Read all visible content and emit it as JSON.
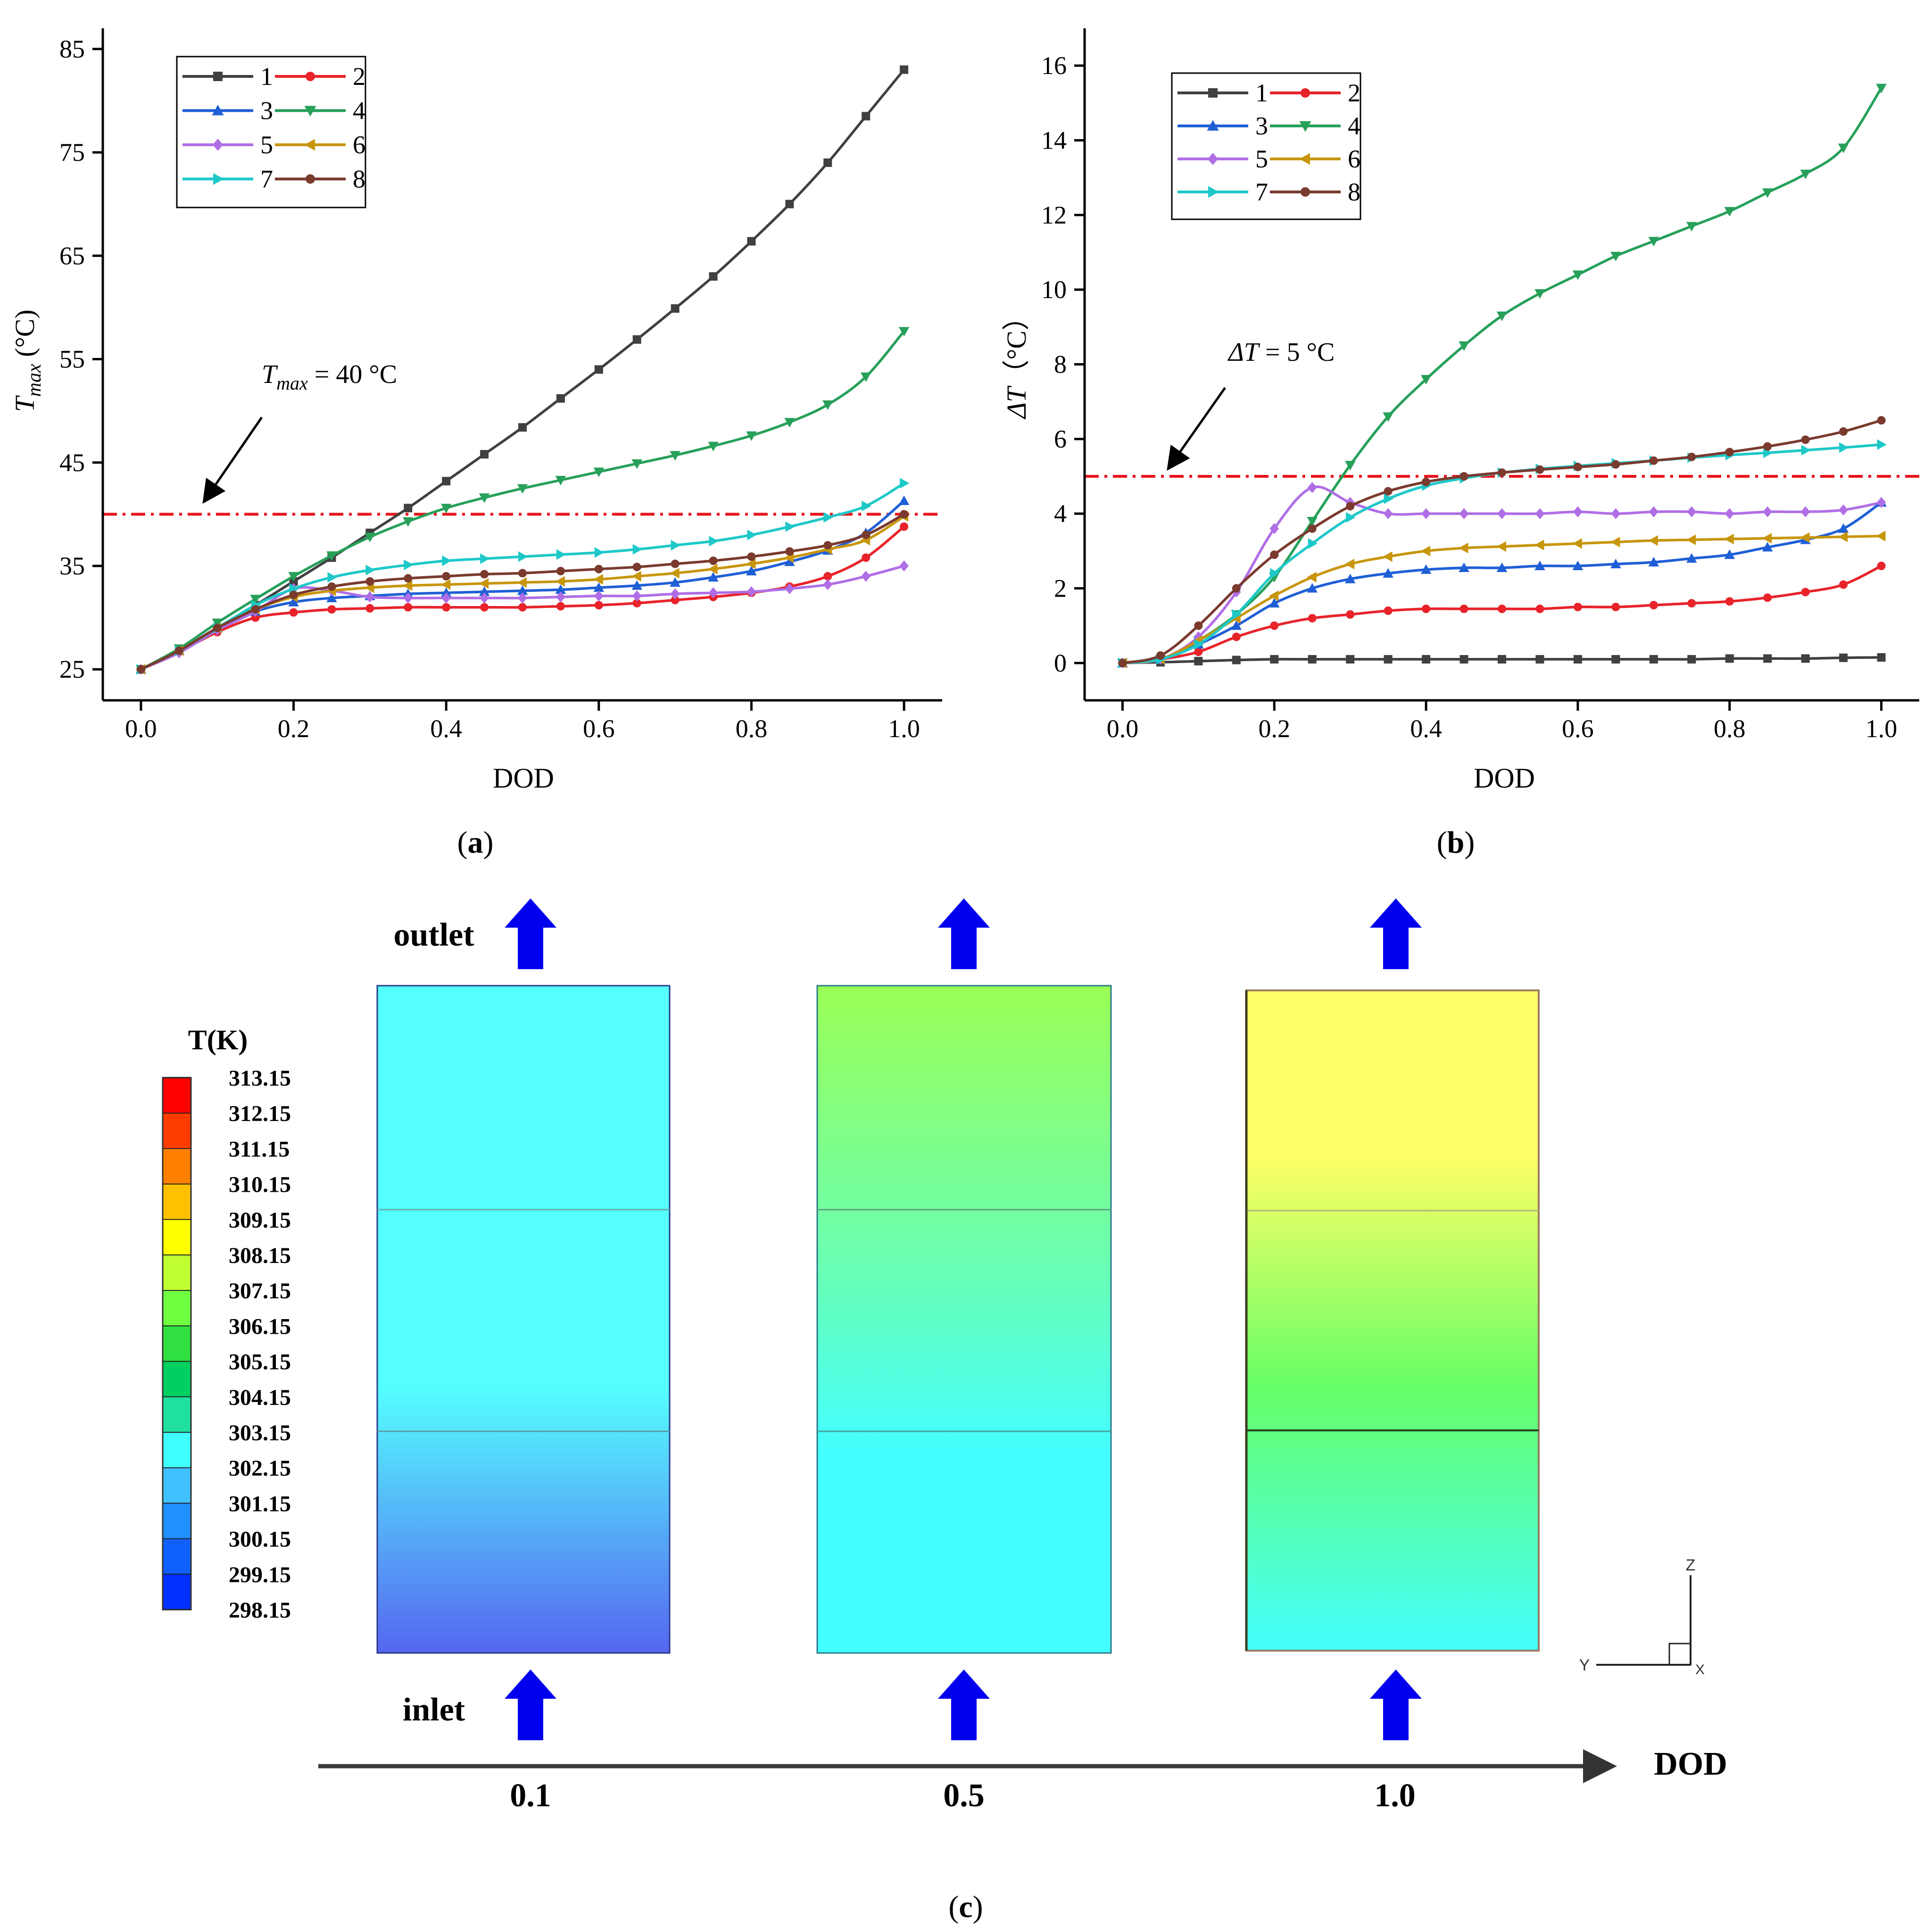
{
  "panel_a": {
    "label": "a",
    "ylabel_main": "T",
    "ylabel_sub": "max",
    "ylabel_unit": " (°C)",
    "xlabel": "DOD",
    "annotation_main": "T",
    "annotation_sub": "max",
    "annotation_rest": " = 40 °C"
  },
  "panel_b": {
    "label": "b",
    "ylabel_main": "ΔT",
    "ylabel_unit": "（°C）",
    "xlabel": "DOD",
    "annotation_main": "ΔT",
    "annotation_rest": " = 5 °C"
  },
  "panel_c": {
    "label": "c",
    "outlet_label": "outlet",
    "inlet_label": "inlet",
    "axis_label": "DOD",
    "snapshots": [
      "0.1",
      "0.5",
      "1.0"
    ],
    "colorbar_title": "T(K)",
    "colorbar_ticks": [
      "313.15",
      "312.15",
      "311.15",
      "310.15",
      "309.15",
      "308.15",
      "307.15",
      "306.15",
      "305.15",
      "304.15",
      "303.15",
      "302.15",
      "301.15",
      "300.15",
      "299.15",
      "298.15"
    ],
    "triad": {
      "z": "Z",
      "y": "Y",
      "x": "X"
    },
    "colorbar_colors": [
      "#ff0000",
      "#ff3c00",
      "#ff8000",
      "#ffc000",
      "#ffff00",
      "#c0ff30",
      "#70ff40",
      "#30e040",
      "#00d060",
      "#20e0a0",
      "#40ffff",
      "#40c0ff",
      "#2090ff",
      "#1060ff",
      "#0030ff",
      "#0000ff"
    ],
    "field_colors": {
      "s01": {
        "top": "#55ffff",
        "bottom": "#5566f0"
      },
      "s05": {
        "top": "#9aff55",
        "mid": "#66ffbb",
        "bottom": "#44ffff"
      },
      "s10": {
        "top": "#ffff66",
        "mid": "#66ff66",
        "bottom": "#44ffff"
      }
    }
  },
  "chart_data": [
    {
      "type": "line",
      "panel": "a",
      "xlabel": "DOD",
      "ylabel": "Tmax (°C)",
      "xlim": [
        -0.05,
        1.05
      ],
      "ylim": [
        22,
        87
      ],
      "x_ticks": [
        0.0,
        0.2,
        0.4,
        0.6,
        0.8,
        1.0
      ],
      "x_tick_labels": [
        "0.0",
        "0.2",
        "0.4",
        "0.6",
        "0.8",
        "1.0"
      ],
      "y_ticks": [
        25,
        35,
        45,
        55,
        65,
        75,
        85
      ],
      "y_tick_labels": [
        "25",
        "35",
        "45",
        "55",
        "65",
        "75",
        "85"
      ],
      "reference_line": {
        "y": 40,
        "color": "#e8141c"
      },
      "legend_position": "top-left",
      "x": [
        0.0,
        0.05,
        0.1,
        0.15,
        0.2,
        0.25,
        0.3,
        0.35,
        0.4,
        0.45,
        0.5,
        0.55,
        0.6,
        0.65,
        0.7,
        0.75,
        0.8,
        0.85,
        0.9,
        0.95,
        1.0
      ],
      "series": [
        {
          "name": "1",
          "color": "#404040",
          "marker": "square",
          "values": [
            25,
            26.8,
            29,
            31.2,
            33.5,
            35.8,
            38.2,
            40.6,
            43.2,
            45.8,
            48.4,
            51.2,
            54.0,
            56.9,
            59.9,
            63.0,
            66.4,
            70.0,
            74.0,
            78.5,
            83
          ]
        },
        {
          "name": "2",
          "color": "#e8232a",
          "marker": "circle",
          "values": [
            25,
            26.7,
            28.6,
            30.0,
            30.5,
            30.8,
            30.9,
            31.0,
            31.0,
            31.0,
            31.0,
            31.1,
            31.2,
            31.4,
            31.7,
            32.0,
            32.4,
            33.0,
            34.0,
            35.8,
            38.8
          ]
        },
        {
          "name": "3",
          "color": "#1f5fd6",
          "marker": "triangle-up",
          "values": [
            25,
            26.8,
            29,
            30.6,
            31.5,
            31.9,
            32.1,
            32.3,
            32.4,
            32.5,
            32.6,
            32.7,
            32.9,
            33.1,
            33.4,
            33.9,
            34.5,
            35.4,
            36.5,
            38.2,
            41.3
          ]
        },
        {
          "name": "4",
          "color": "#27a05a",
          "marker": "triangle-down",
          "values": [
            25,
            27,
            29.5,
            31.8,
            34,
            36.0,
            37.8,
            39.3,
            40.6,
            41.6,
            42.5,
            43.3,
            44.1,
            44.9,
            45.7,
            46.6,
            47.6,
            48.9,
            50.6,
            53.3,
            57.7
          ]
        },
        {
          "name": "5",
          "color": "#b06ee6",
          "marker": "diamond",
          "values": [
            25,
            26.6,
            28.8,
            30.6,
            32.8,
            32.6,
            32.0,
            31.9,
            31.9,
            31.9,
            31.9,
            32.0,
            32.1,
            32.1,
            32.3,
            32.4,
            32.5,
            32.8,
            33.2,
            34.0,
            35.0
          ]
        },
        {
          "name": "6",
          "color": "#c8960c",
          "marker": "triangle-left",
          "values": [
            25,
            26.8,
            29,
            30.8,
            32.0,
            32.6,
            32.9,
            33.1,
            33.2,
            33.3,
            33.4,
            33.5,
            33.7,
            34.0,
            34.3,
            34.7,
            35.2,
            35.8,
            36.6,
            37.5,
            39.8
          ]
        },
        {
          "name": "7",
          "color": "#1ec8c8",
          "marker": "triangle-right",
          "values": [
            25,
            26.8,
            29,
            31.2,
            32.8,
            33.9,
            34.6,
            35.1,
            35.5,
            35.7,
            35.9,
            36.1,
            36.3,
            36.6,
            37.0,
            37.4,
            38.0,
            38.8,
            39.7,
            40.8,
            43.0
          ]
        },
        {
          "name": "8",
          "color": "#7a3a2e",
          "marker": "circle",
          "values": [
            25,
            26.8,
            29,
            30.8,
            32.2,
            33.0,
            33.5,
            33.8,
            34.0,
            34.2,
            34.3,
            34.5,
            34.7,
            34.9,
            35.2,
            35.5,
            35.9,
            36.4,
            37.0,
            38.0,
            40.0
          ]
        }
      ]
    },
    {
      "type": "line",
      "panel": "b",
      "xlabel": "DOD",
      "ylabel": "ΔT（°C）",
      "xlim": [
        -0.05,
        1.05
      ],
      "ylim": [
        -1,
        17
      ],
      "x_ticks": [
        0.0,
        0.2,
        0.4,
        0.6,
        0.8,
        1.0
      ],
      "x_tick_labels": [
        "0.0",
        "0.2",
        "0.4",
        "0.6",
        "0.8",
        "1.0"
      ],
      "y_ticks": [
        0,
        2,
        4,
        6,
        8,
        10,
        12,
        14,
        16
      ],
      "y_tick_labels": [
        "0",
        "2",
        "4",
        "6",
        "8",
        "10",
        "12",
        "14",
        "16"
      ],
      "reference_line": {
        "y": 5,
        "color": "#e8141c"
      },
      "legend_position": "top-left",
      "x": [
        0.0,
        0.05,
        0.1,
        0.15,
        0.2,
        0.25,
        0.3,
        0.35,
        0.4,
        0.45,
        0.5,
        0.55,
        0.6,
        0.65,
        0.7,
        0.75,
        0.8,
        0.85,
        0.9,
        0.95,
        1.0
      ],
      "series": [
        {
          "name": "1",
          "color": "#404040",
          "marker": "square",
          "values": [
            0,
            0.02,
            0.05,
            0.08,
            0.1,
            0.1,
            0.1,
            0.1,
            0.1,
            0.1,
            0.1,
            0.1,
            0.1,
            0.1,
            0.1,
            0.1,
            0.12,
            0.12,
            0.12,
            0.14,
            0.15
          ]
        },
        {
          "name": "2",
          "color": "#e8232a",
          "marker": "circle",
          "values": [
            0,
            0.1,
            0.3,
            0.7,
            1.0,
            1.2,
            1.3,
            1.4,
            1.45,
            1.45,
            1.45,
            1.45,
            1.5,
            1.5,
            1.55,
            1.6,
            1.65,
            1.75,
            1.9,
            2.1,
            2.6
          ]
        },
        {
          "name": "3",
          "color": "#1f5fd6",
          "marker": "triangle-up",
          "values": [
            0,
            0.1,
            0.5,
            1.0,
            1.6,
            2.0,
            2.25,
            2.4,
            2.5,
            2.55,
            2.55,
            2.6,
            2.6,
            2.65,
            2.7,
            2.8,
            2.9,
            3.1,
            3.3,
            3.6,
            4.3
          ]
        },
        {
          "name": "4",
          "color": "#27a05a",
          "marker": "triangle-down",
          "values": [
            0,
            0.1,
            0.6,
            1.3,
            2.3,
            3.8,
            5.3,
            6.6,
            7.6,
            8.5,
            9.3,
            9.9,
            10.4,
            10.9,
            11.3,
            11.7,
            12.1,
            12.6,
            13.1,
            13.8,
            15.4
          ]
        },
        {
          "name": "5",
          "color": "#b06ee6",
          "marker": "diamond",
          "values": [
            0,
            0.1,
            0.7,
            1.9,
            3.6,
            4.7,
            4.3,
            4.0,
            4.0,
            4.0,
            4.0,
            4.0,
            4.05,
            4.0,
            4.05,
            4.05,
            4.0,
            4.05,
            4.05,
            4.1,
            4.3
          ]
        },
        {
          "name": "6",
          "color": "#c8960c",
          "marker": "triangle-left",
          "values": [
            0,
            0.1,
            0.6,
            1.2,
            1.8,
            2.3,
            2.65,
            2.85,
            3.0,
            3.08,
            3.12,
            3.16,
            3.2,
            3.24,
            3.28,
            3.3,
            3.32,
            3.34,
            3.36,
            3.38,
            3.4
          ]
        },
        {
          "name": "7",
          "color": "#1ec8c8",
          "marker": "triangle-right",
          "values": [
            0,
            0.1,
            0.5,
            1.3,
            2.4,
            3.2,
            3.9,
            4.4,
            4.75,
            4.95,
            5.1,
            5.2,
            5.28,
            5.35,
            5.42,
            5.5,
            5.57,
            5.63,
            5.7,
            5.77,
            5.85
          ]
        },
        {
          "name": "8",
          "color": "#7a3a2e",
          "marker": "circle",
          "values": [
            0,
            0.2,
            1.0,
            2.0,
            2.9,
            3.6,
            4.2,
            4.6,
            4.85,
            5.0,
            5.1,
            5.18,
            5.25,
            5.32,
            5.42,
            5.52,
            5.65,
            5.8,
            5.98,
            6.2,
            6.5
          ]
        }
      ]
    }
  ]
}
